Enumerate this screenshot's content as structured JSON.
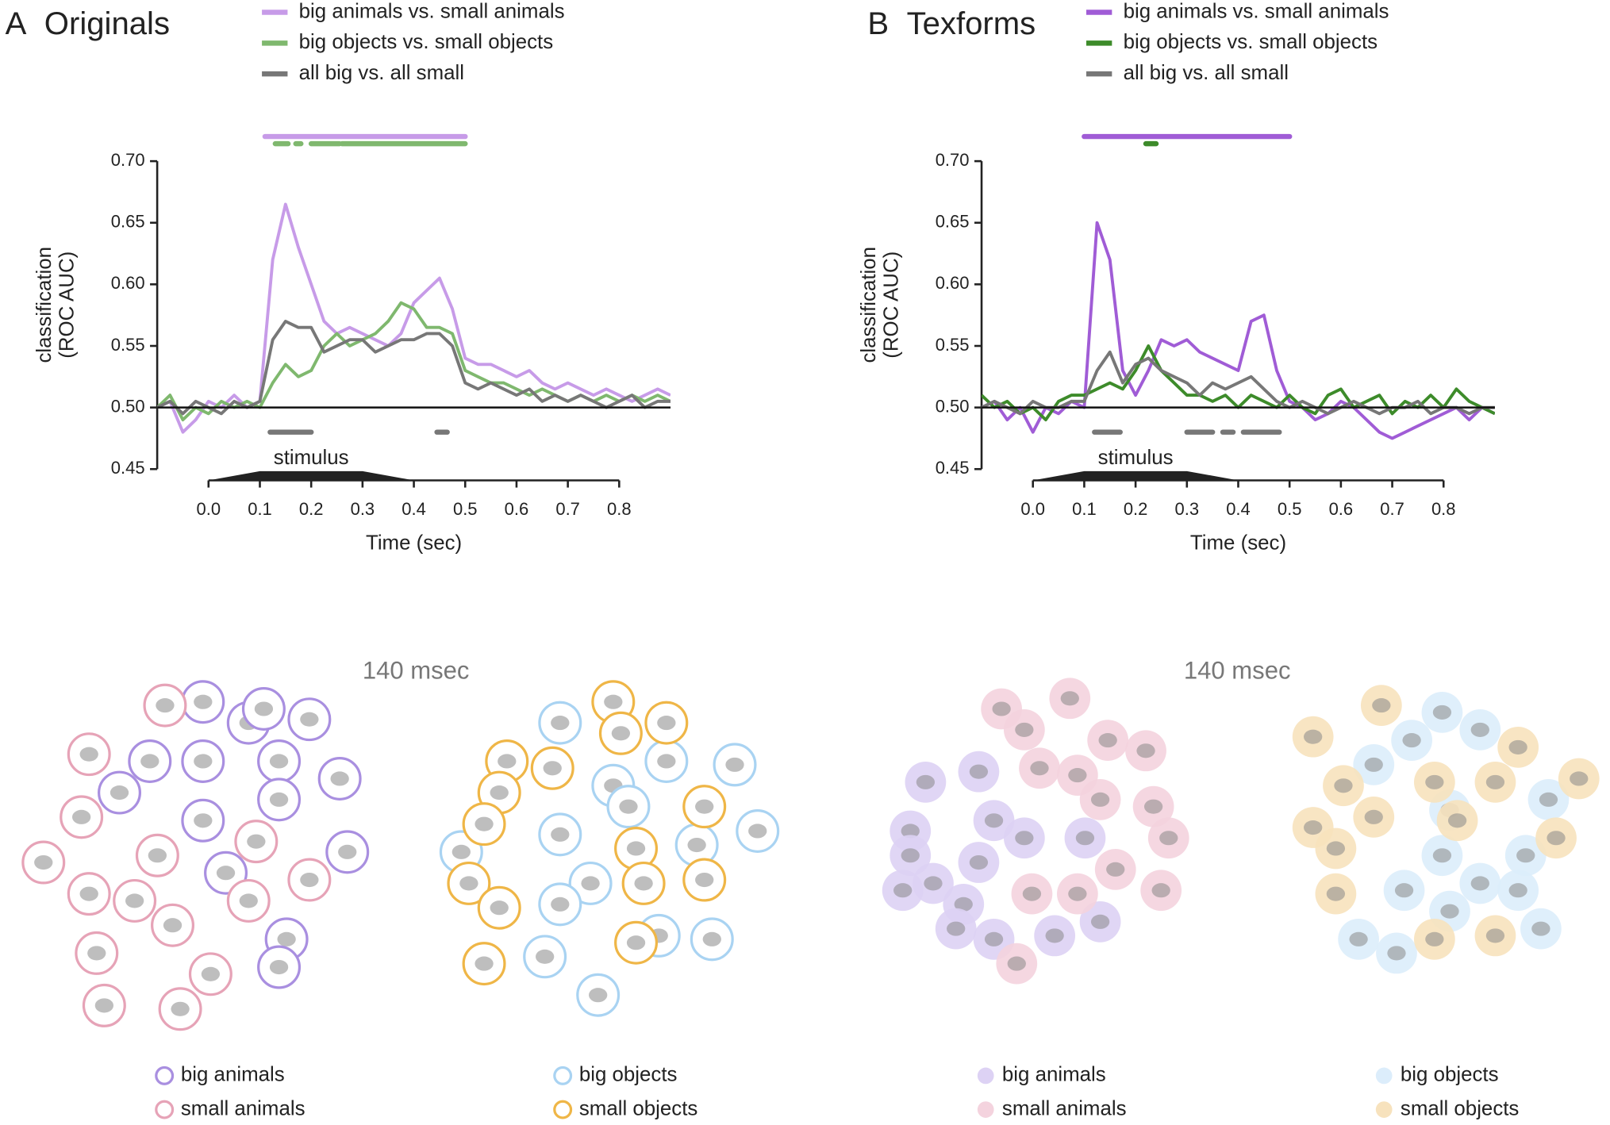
{
  "chart_data": [
    {
      "type": "line",
      "label": "A",
      "title": "Originals",
      "xlabel": "Time (sec)",
      "ylabel": [
        "classification",
        "(ROC AUC)"
      ],
      "x": [
        -0.1,
        -0.075,
        -0.05,
        -0.025,
        0,
        0.025,
        0.05,
        0.075,
        0.1,
        0.125,
        0.15,
        0.175,
        0.2,
        0.225,
        0.25,
        0.275,
        0.3,
        0.325,
        0.35,
        0.375,
        0.4,
        0.425,
        0.45,
        0.475,
        0.5,
        0.525,
        0.55,
        0.575,
        0.6,
        0.625,
        0.65,
        0.675,
        0.7,
        0.725,
        0.75,
        0.775,
        0.8,
        0.825,
        0.85,
        0.875,
        0.9
      ],
      "xlim": [
        -0.1,
        0.9
      ],
      "ylim": [
        0.45,
        0.7
      ],
      "xticks": [
        {
          "value": 0,
          "label": "0.0"
        },
        {
          "value": 0.1,
          "label": "0.1"
        },
        {
          "value": 0.2,
          "label": "0.2"
        },
        {
          "value": 0.3,
          "label": "0.3"
        },
        {
          "value": 0.4,
          "label": "0.4"
        },
        {
          "value": 0.5,
          "label": "0.5"
        },
        {
          "value": 0.6,
          "label": "0.6"
        },
        {
          "value": 0.7,
          "label": "0.7"
        },
        {
          "value": 0.8,
          "label": "0.8"
        }
      ],
      "yticks": [
        {
          "value": 0.45,
          "label": "0.45"
        },
        {
          "value": 0.5,
          "label": "0.50"
        },
        {
          "value": 0.55,
          "label": "0.55"
        },
        {
          "value": 0.6,
          "label": "0.60"
        },
        {
          "value": 0.65,
          "label": "0.65"
        },
        {
          "value": 0.7,
          "label": "0.70"
        }
      ],
      "hline": 0.5,
      "stimulus": {
        "label": "stimulus",
        "start": 0,
        "end": 0.4
      },
      "series": [
        {
          "name": "big animals vs. small animals",
          "color": "#c79be8",
          "values": [
            0.5,
            0.505,
            0.48,
            0.49,
            0.505,
            0.5,
            0.51,
            0.5,
            0.505,
            0.62,
            0.665,
            0.63,
            0.6,
            0.57,
            0.56,
            0.565,
            0.56,
            0.555,
            0.55,
            0.56,
            0.585,
            0.595,
            0.605,
            0.58,
            0.54,
            0.535,
            0.535,
            0.53,
            0.525,
            0.53,
            0.52,
            0.515,
            0.52,
            0.515,
            0.51,
            0.515,
            0.51,
            0.505,
            0.51,
            0.515,
            0.51
          ],
          "significant": [
            [
              0.11,
              0.5
            ]
          ]
        },
        {
          "name": "big objects vs. small objects",
          "color": "#7fb86e",
          "values": [
            0.5,
            0.51,
            0.49,
            0.5,
            0.495,
            0.505,
            0.5,
            0.505,
            0.5,
            0.52,
            0.535,
            0.525,
            0.53,
            0.55,
            0.56,
            0.55,
            0.555,
            0.56,
            0.57,
            0.585,
            0.58,
            0.565,
            0.565,
            0.56,
            0.53,
            0.525,
            0.52,
            0.52,
            0.515,
            0.51,
            0.515,
            0.51,
            0.505,
            0.51,
            0.505,
            0.51,
            0.505,
            0.51,
            0.505,
            0.51,
            0.505
          ],
          "significant": [
            [
              0.13,
              0.155
            ],
            [
              0.17,
              0.18
            ],
            [
              0.2,
              0.255
            ],
            [
              0.26,
              0.5
            ]
          ]
        },
        {
          "name": "all big vs. all small",
          "color": "#777777",
          "values": [
            0.5,
            0.505,
            0.495,
            0.505,
            0.5,
            0.495,
            0.505,
            0.5,
            0.505,
            0.555,
            0.57,
            0.565,
            0.565,
            0.545,
            0.55,
            0.555,
            0.555,
            0.545,
            0.55,
            0.555,
            0.555,
            0.56,
            0.56,
            0.55,
            0.52,
            0.515,
            0.52,
            0.515,
            0.51,
            0.515,
            0.505,
            0.51,
            0.505,
            0.51,
            0.505,
            0.5,
            0.505,
            0.51,
            0.5,
            0.505,
            0.505
          ],
          "significant": [
            [
              0.12,
              0.2
            ],
            [
              0.445,
              0.465
            ]
          ]
        }
      ]
    },
    {
      "type": "line",
      "label": "B",
      "title": "Texforms",
      "xlabel": "Time (sec)",
      "ylabel": [
        "classification",
        "(ROC AUC)"
      ],
      "x": [
        -0.1,
        -0.075,
        -0.05,
        -0.025,
        0,
        0.025,
        0.05,
        0.075,
        0.1,
        0.125,
        0.15,
        0.175,
        0.2,
        0.225,
        0.25,
        0.275,
        0.3,
        0.325,
        0.35,
        0.375,
        0.4,
        0.425,
        0.45,
        0.475,
        0.5,
        0.525,
        0.55,
        0.575,
        0.6,
        0.625,
        0.65,
        0.675,
        0.7,
        0.725,
        0.75,
        0.775,
        0.8,
        0.825,
        0.85,
        0.875,
        0.9
      ],
      "xlim": [
        -0.1,
        0.9
      ],
      "ylim": [
        0.45,
        0.7
      ],
      "xticks": [
        {
          "value": 0,
          "label": "0.0"
        },
        {
          "value": 0.1,
          "label": "0.1"
        },
        {
          "value": 0.2,
          "label": "0.2"
        },
        {
          "value": 0.3,
          "label": "0.3"
        },
        {
          "value": 0.4,
          "label": "0.4"
        },
        {
          "value": 0.5,
          "label": "0.5"
        },
        {
          "value": 0.6,
          "label": "0.6"
        },
        {
          "value": 0.7,
          "label": "0.7"
        },
        {
          "value": 0.8,
          "label": "0.8"
        }
      ],
      "yticks": [
        {
          "value": 0.45,
          "label": "0.45"
        },
        {
          "value": 0.5,
          "label": "0.50"
        },
        {
          "value": 0.55,
          "label": "0.55"
        },
        {
          "value": 0.6,
          "label": "0.60"
        },
        {
          "value": 0.65,
          "label": "0.65"
        },
        {
          "value": 0.7,
          "label": "0.70"
        }
      ],
      "hline": 0.5,
      "stimulus": {
        "label": "stimulus",
        "start": 0,
        "end": 0.4
      },
      "series": [
        {
          "name": "big animals vs. small animals",
          "color": "#a05cd6",
          "values": [
            0.5,
            0.505,
            0.49,
            0.5,
            0.48,
            0.5,
            0.495,
            0.505,
            0.5,
            0.65,
            0.62,
            0.53,
            0.51,
            0.53,
            0.555,
            0.55,
            0.555,
            0.545,
            0.54,
            0.535,
            0.53,
            0.57,
            0.575,
            0.53,
            0.505,
            0.5,
            0.49,
            0.495,
            0.505,
            0.5,
            0.49,
            0.48,
            0.475,
            0.48,
            0.485,
            0.49,
            0.495,
            0.5,
            0.49,
            0.5,
            0.495
          ],
          "significant": [
            [
              0.1,
              0.5
            ]
          ]
        },
        {
          "name": "big objects vs. small objects",
          "color": "#3d8b2a",
          "values": [
            0.51,
            0.5,
            0.505,
            0.495,
            0.5,
            0.49,
            0.505,
            0.51,
            0.51,
            0.515,
            0.52,
            0.515,
            0.53,
            0.55,
            0.53,
            0.52,
            0.51,
            0.51,
            0.505,
            0.51,
            0.5,
            0.51,
            0.505,
            0.5,
            0.51,
            0.5,
            0.495,
            0.51,
            0.515,
            0.5,
            0.505,
            0.51,
            0.495,
            0.505,
            0.5,
            0.51,
            0.5,
            0.515,
            0.505,
            0.5,
            0.495
          ],
          "significant": [
            [
              0.22,
              0.24
            ]
          ]
        },
        {
          "name": "all big vs. all small",
          "color": "#777777",
          "values": [
            0.5,
            0.505,
            0.5,
            0.495,
            0.505,
            0.5,
            0.5,
            0.505,
            0.505,
            0.53,
            0.545,
            0.52,
            0.535,
            0.54,
            0.53,
            0.525,
            0.52,
            0.51,
            0.52,
            0.515,
            0.52,
            0.525,
            0.515,
            0.505,
            0.5,
            0.505,
            0.5,
            0.495,
            0.5,
            0.505,
            0.5,
            0.495,
            0.5,
            0.5,
            0.505,
            0.495,
            0.5,
            0.5,
            0.495,
            0.5,
            0.5
          ],
          "significant": [
            [
              0.12,
              0.17
            ],
            [
              0.3,
              0.35
            ],
            [
              0.37,
              0.39
            ],
            [
              0.41,
              0.48
            ]
          ]
        }
      ]
    },
    {
      "type": "scatter",
      "title": "140 msec",
      "marker": "ring",
      "xlim": [
        0,
        100
      ],
      "ylim": [
        0,
        100
      ],
      "series": [
        {
          "name": "big animals",
          "color": "#a98fe0",
          "x": [
            24,
            30,
            32,
            38,
            17,
            24,
            34,
            42,
            13,
            34,
            24,
            43,
            27,
            35,
            34
          ],
          "y": [
            93,
            87,
            91,
            88,
            76,
            76,
            76,
            71,
            67,
            65,
            59,
            50,
            44,
            25,
            17
          ]
        },
        {
          "name": "small animals",
          "color": "#e6a3b7",
          "x": [
            19,
            9,
            8,
            31,
            3,
            18,
            38,
            9,
            15,
            30,
            20,
            10,
            25,
            11,
            21
          ],
          "y": [
            92,
            78,
            60,
            53,
            47,
            49,
            42,
            38,
            36,
            36,
            29,
            21,
            15,
            6,
            5
          ]
        },
        {
          "name": "big objects",
          "color": "#a9d3f2",
          "x": [
            71,
            78,
            85,
            94,
            97,
            71,
            80,
            89,
            58,
            75,
            71,
            69,
            84,
            91,
            76
          ],
          "y": [
            87,
            69,
            76,
            75,
            56,
            55,
            63,
            52,
            50,
            41,
            35,
            20,
            26,
            25,
            9
          ]
        },
        {
          "name": "small objects",
          "color": "#efb647",
          "x": [
            78,
            85,
            64,
            70,
            63,
            79,
            61,
            90,
            81,
            59,
            63,
            82,
            90,
            81,
            61
          ],
          "y": [
            93,
            87,
            76,
            74,
            67,
            84,
            58,
            63,
            51,
            41,
            34,
            41,
            42,
            24,
            18
          ]
        }
      ]
    },
    {
      "type": "scatter",
      "title": "140 msec",
      "marker": "filled",
      "xlim": [
        0,
        100
      ],
      "ylim": [
        0,
        100
      ],
      "series": [
        {
          "name": "big animals",
          "color": "#ddd2f4",
          "x": [
            11,
            18,
            9,
            20,
            24,
            32,
            9,
            18,
            12,
            16,
            15,
            20,
            28,
            34,
            8
          ],
          "y": [
            70,
            73,
            56,
            59,
            54,
            54,
            49,
            47,
            41,
            35,
            28,
            25,
            26,
            30,
            39
          ]
        },
        {
          "name": "small animals",
          "color": "#f4d3de",
          "x": [
            21,
            30,
            24,
            35,
            40,
            26,
            31,
            34,
            41,
            43,
            36,
            25,
            31,
            42,
            23
          ],
          "y": [
            91,
            94,
            85,
            82,
            79,
            74,
            72,
            65,
            63,
            54,
            45,
            38,
            38,
            39,
            18
          ]
        },
        {
          "name": "big objects",
          "color": "#dcedfb",
          "x": [
            79,
            84,
            75,
            70,
            80,
            93,
            90,
            79,
            84,
            89,
            74,
            80,
            68,
            73,
            92
          ],
          "y": [
            90,
            85,
            82,
            75,
            62,
            65,
            49,
            49,
            41,
            39,
            39,
            33,
            25,
            21,
            28
          ]
        },
        {
          "name": "small objects",
          "color": "#f7e2bd",
          "x": [
            71,
            62,
            89,
            66,
            78,
            86,
            97,
            70,
            81,
            94,
            62,
            65,
            65,
            78,
            86
          ],
          "y": [
            92,
            83,
            80,
            69,
            70,
            70,
            71,
            60,
            59,
            54,
            57,
            51,
            38,
            25,
            26
          ]
        }
      ]
    }
  ]
}
